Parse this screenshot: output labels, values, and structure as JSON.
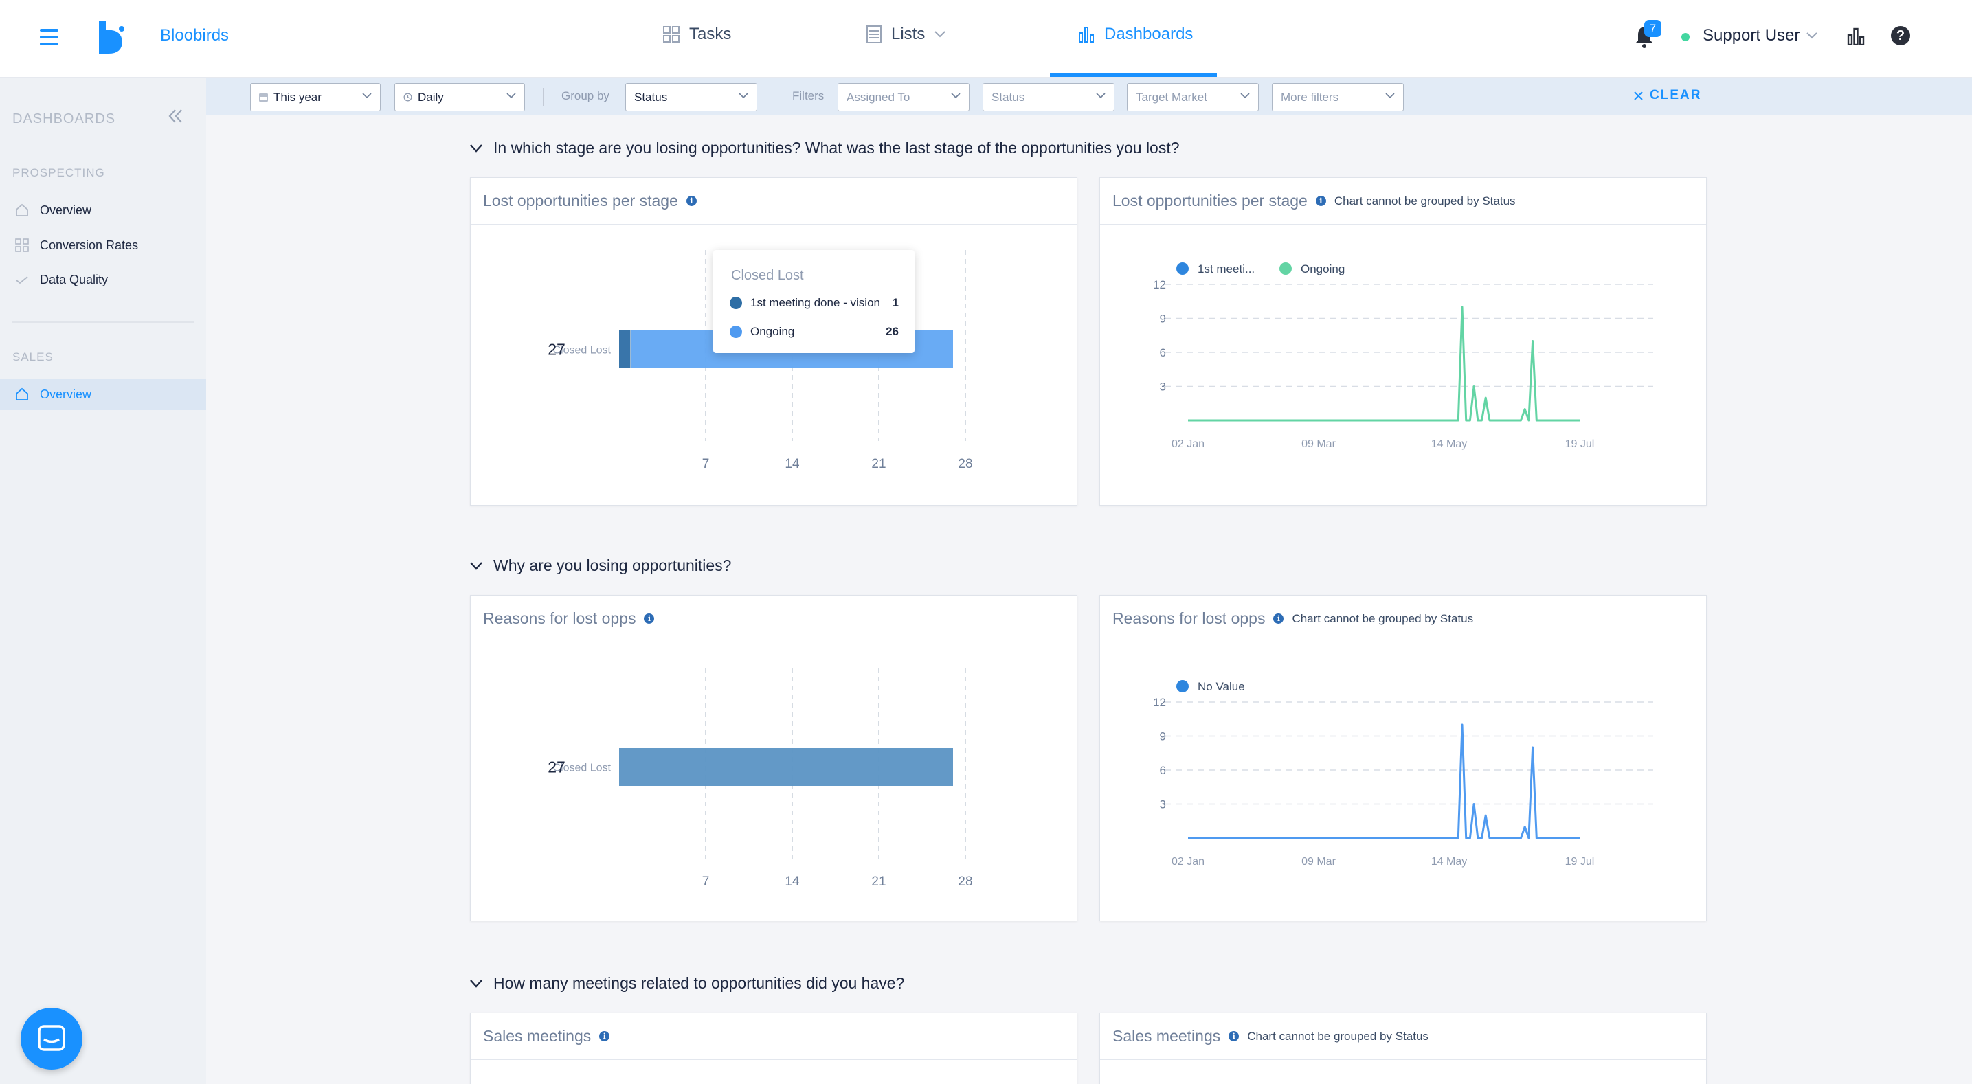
{
  "brand": "Bloobirds",
  "nav": {
    "tasks": "Tasks",
    "lists": "Lists",
    "dashboards": "Dashboards"
  },
  "notifications": {
    "count": "7"
  },
  "user": {
    "name": "Support User",
    "status_color": "#43d6a0"
  },
  "colors": {
    "accent": "#1991ff",
    "series_dark": "#2e6ea5",
    "series_light": "#61a6f3",
    "series_green": "#63d4a4"
  },
  "sidebar": {
    "title": "DASHBOARDS",
    "sections": [
      {
        "label": "PROSPECTING",
        "items": [
          {
            "label": "Overview",
            "icon": "home-icon"
          },
          {
            "label": "Conversion Rates",
            "icon": "grid-icon"
          },
          {
            "label": "Data Quality",
            "icon": "check-icon"
          }
        ]
      },
      {
        "label": "SALES",
        "items": [
          {
            "label": "Overview",
            "icon": "home-icon",
            "active": true
          }
        ]
      }
    ]
  },
  "filters": {
    "date_range": "This year",
    "interval": "Daily",
    "group_by_label": "Group by",
    "group_by": "Status",
    "filters_label": "Filters",
    "assigned_to": "Assigned To",
    "status": "Status",
    "target_market": "Target Market",
    "more_filters": "More filters",
    "clear": "CLEAR"
  },
  "sections": [
    {
      "heading": "In which stage are you losing opportunities? What was the last stage of the opportunities you lost?"
    },
    {
      "heading": "Why are you losing opportunities?"
    },
    {
      "heading": "How many meetings related to opportunities did you have?"
    }
  ],
  "cards": {
    "lost_stage_bar": {
      "title": "Lost opportunities per stage"
    },
    "lost_stage_line": {
      "title": "Lost opportunities per stage",
      "note": "Chart cannot be grouped by Status"
    },
    "reasons_bar": {
      "title": "Reasons for lost opps"
    },
    "reasons_line": {
      "title": "Reasons for lost opps",
      "note": "Chart cannot be grouped by Status"
    },
    "meetings_bar": {
      "title": "Sales meetings"
    },
    "meetings_line": {
      "title": "Sales meetings",
      "note": "Chart cannot be grouped by Status"
    }
  },
  "tooltip": {
    "title": "Closed Lost",
    "rows": [
      {
        "label": "1st meeting done - vision",
        "value": "1",
        "color": "#2e6ea5"
      },
      {
        "label": "Ongoing",
        "value": "26",
        "color": "#4f9af0"
      }
    ]
  },
  "chart_data": [
    {
      "type": "bar",
      "orientation": "horizontal",
      "stacked": true,
      "categories": [
        "Closed Lost"
      ],
      "series": [
        {
          "name": "1st meeting done - vision",
          "values": [
            1
          ],
          "color": "#2e6ea5"
        },
        {
          "name": "Ongoing",
          "values": [
            26
          ],
          "color": "#61a6f3"
        }
      ],
      "total_label": "27",
      "xlim": [
        0,
        28
      ],
      "xticks": [
        7,
        14,
        21,
        28
      ]
    },
    {
      "type": "line",
      "legend": [
        "1st meeti...",
        "Ongoing"
      ],
      "legend_colors": [
        "#2e86de",
        "#63d4a4"
      ],
      "series_color": "#63d4a4",
      "x_ticks": [
        "02 Jan",
        "09 Mar",
        "14 May",
        "19 Jul"
      ],
      "y_ticks": [
        3,
        6,
        9,
        12
      ],
      "ylim": [
        0,
        13
      ],
      "x": [
        0,
        69,
        70,
        71,
        72,
        73,
        74,
        75,
        76,
        77,
        78,
        79,
        85,
        86,
        87,
        88,
        89,
        90,
        91,
        92,
        100
      ],
      "values": [
        0,
        0,
        10,
        0,
        0,
        3,
        0,
        0,
        2,
        0,
        0,
        0,
        0,
        1,
        0,
        7,
        0,
        0,
        0,
        0,
        0
      ]
    },
    {
      "type": "bar",
      "orientation": "horizontal",
      "categories": [
        "Closed Lost"
      ],
      "series": [
        {
          "name": "No Value",
          "values": [
            27
          ],
          "color": "#5b94c4"
        }
      ],
      "total_label": "27",
      "xlim": [
        0,
        28
      ],
      "xticks": [
        7,
        14,
        21,
        28
      ]
    },
    {
      "type": "line",
      "legend": [
        "No Value"
      ],
      "legend_colors": [
        "#2e86de"
      ],
      "series_color": "#4f9af0",
      "x_ticks": [
        "02 Jan",
        "09 Mar",
        "14 May",
        "19 Jul"
      ],
      "y_ticks": [
        3,
        6,
        9,
        12
      ],
      "ylim": [
        0,
        13
      ],
      "x": [
        0,
        69,
        70,
        71,
        72,
        73,
        74,
        75,
        76,
        77,
        78,
        79,
        85,
        86,
        87,
        88,
        89,
        90,
        91,
        92,
        100
      ],
      "values": [
        0,
        0,
        10,
        0,
        0,
        3,
        0,
        0,
        2,
        0,
        0,
        0,
        0,
        1,
        0,
        8,
        0,
        0,
        0,
        0,
        0
      ]
    }
  ]
}
